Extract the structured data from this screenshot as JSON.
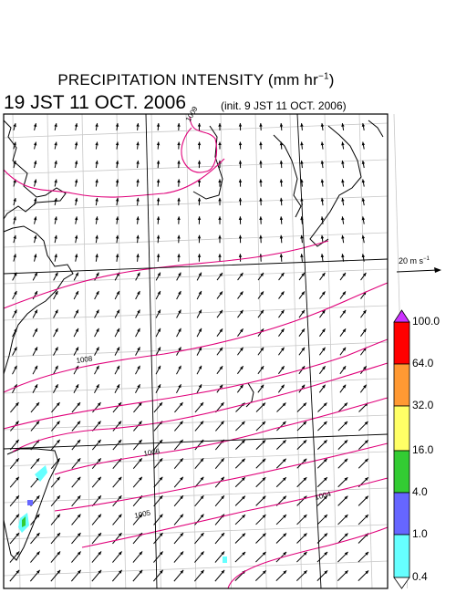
{
  "title_text": "PRECIPITATION INTENSITY (mm hr",
  "title_exp": "−1",
  "title_close": ")",
  "datetime": "19 JST 11 OCT. 2006",
  "init": "(init. 9 JST 11 OCT. 2006)",
  "wind_scale": {
    "value": "20 m s",
    "exp": "−1"
  },
  "colorbar": {
    "labels": [
      "100.0",
      "64.0",
      "32.0",
      "16.0",
      "4.0",
      "1.0",
      "0.4"
    ],
    "colors": [
      "#ff0000",
      "#ff9933",
      "#ffff66",
      "#33cc33",
      "#6666ff",
      "#66ffff"
    ],
    "top_arrow_color": "#cc33ff"
  },
  "isobars": {
    "color": "#e0007a",
    "labels": [
      "1009",
      "1008",
      "1006",
      "1005",
      "1004"
    ]
  },
  "map": {
    "land_color": "#000000",
    "grid_color": "#c8c8c8",
    "frame_color": "#000000"
  }
}
